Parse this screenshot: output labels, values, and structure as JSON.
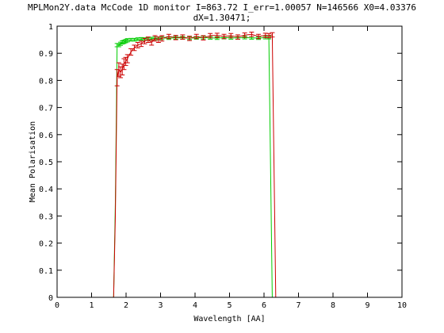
{
  "chart_data": {
    "type": "line",
    "title_lines": [
      "MPLMon2Y.data McCode 1D monitor I=863.72 I_err=1.00057 N=146566 X0=4.03376",
      "dX=1.30471;"
    ],
    "xlabel": "Wavelength [AA]",
    "ylabel": "Mean Polarisation",
    "xlim": [
      0,
      10
    ],
    "ylim": [
      0,
      1
    ],
    "xticks": [
      "0",
      "1",
      "2",
      "3",
      "4",
      "5",
      "6",
      "7",
      "8",
      "9",
      "10"
    ],
    "yticks": [
      "0",
      "0.1",
      "0.2",
      "0.3",
      "0.4",
      "0.5",
      "0.6",
      "0.7",
      "0.8",
      "0.9",
      "1"
    ],
    "grid": false,
    "legend": "none",
    "series": [
      {
        "color": "#00cc00",
        "x": [
          1.55,
          1.64,
          1.69,
          1.74,
          1.79,
          1.84,
          1.89,
          1.94,
          1.99,
          2.04,
          2.14,
          2.24,
          2.34,
          2.44,
          2.54,
          2.64,
          2.74,
          2.84,
          2.94,
          3.04,
          3.24,
          3.44,
          3.64,
          3.84,
          4.04,
          4.24,
          4.44,
          4.64,
          4.84,
          5.04,
          5.24,
          5.44,
          5.64,
          5.84,
          6.04,
          6.14,
          6.24,
          6.34,
          6.44
        ],
        "y": [
          0,
          0,
          0.35,
          0.93,
          0.93,
          0.935,
          0.94,
          0.942,
          0.945,
          0.948,
          0.95,
          0.95,
          0.952,
          0.953,
          0.952,
          0.953,
          0.954,
          0.955,
          0.955,
          0.956,
          0.956,
          0.957,
          0.957,
          0.956,
          0.957,
          0.958,
          0.957,
          0.956,
          0.958,
          0.957,
          0.957,
          0.958,
          0.957,
          0.956,
          0.958,
          0.958,
          0,
          0,
          0
        ],
        "err": [
          0,
          0,
          0,
          0.006,
          0.006,
          0.006,
          0.006,
          0.006,
          0.006,
          0.006,
          0.005,
          0.005,
          0.005,
          0.005,
          0.005,
          0.005,
          0.005,
          0.005,
          0.005,
          0.005,
          0.005,
          0.005,
          0.005,
          0.005,
          0.005,
          0.005,
          0.005,
          0.005,
          0.005,
          0.005,
          0.005,
          0.005,
          0.005,
          0.005,
          0.005,
          0.005,
          0,
          0,
          0
        ]
      },
      {
        "color": "#cc0000",
        "x": [
          1.55,
          1.64,
          1.69,
          1.74,
          1.79,
          1.84,
          1.89,
          1.94,
          1.99,
          2.04,
          2.14,
          2.24,
          2.34,
          2.44,
          2.54,
          2.64,
          2.74,
          2.84,
          2.94,
          3.04,
          3.24,
          3.44,
          3.64,
          3.84,
          4.04,
          4.24,
          4.44,
          4.64,
          4.84,
          5.04,
          5.24,
          5.44,
          5.64,
          5.84,
          6.04,
          6.14,
          6.24,
          6.34,
          6.44
        ],
        "y": [
          0,
          0,
          0.3,
          0.81,
          0.84,
          0.83,
          0.84,
          0.86,
          0.87,
          0.88,
          0.905,
          0.92,
          0.93,
          0.935,
          0.945,
          0.95,
          0.94,
          0.955,
          0.95,
          0.955,
          0.962,
          0.958,
          0.96,
          0.955,
          0.962,
          0.957,
          0.965,
          0.966,
          0.962,
          0.965,
          0.96,
          0.967,
          0.97,
          0.962,
          0.966,
          0.965,
          0.968,
          0,
          0
        ],
        "err": [
          0,
          0,
          0,
          0.03,
          0.025,
          0.02,
          0.02,
          0.02,
          0.015,
          0.015,
          0.012,
          0.01,
          0.01,
          0.01,
          0.01,
          0.01,
          0.01,
          0.01,
          0.01,
          0.01,
          0.008,
          0.008,
          0.008,
          0.008,
          0.008,
          0.008,
          0.008,
          0.008,
          0.008,
          0.008,
          0.008,
          0.008,
          0.008,
          0.008,
          0.008,
          0.008,
          0.008,
          0,
          0
        ]
      }
    ]
  }
}
